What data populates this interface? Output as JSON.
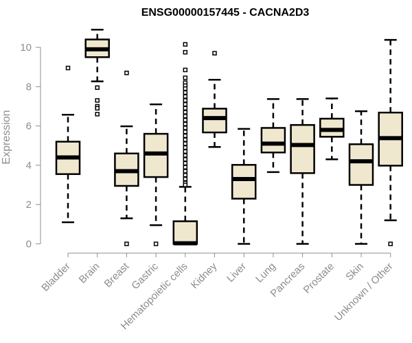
{
  "chart_data": {
    "type": "boxplot",
    "title": "ENSG00000157445 - CACNA2D3",
    "xlabel": "",
    "ylabel": "Expression",
    "ylim": [
      0,
      10.9
    ],
    "yticks": [
      0,
      2,
      4,
      6,
      8,
      10
    ],
    "grid": false,
    "box_fill": "#efe8cf",
    "box_stroke": "#000000",
    "axis_color": "#8c8c8c",
    "categories": [
      "Bladder",
      "Brain",
      "Breast",
      "Gastric",
      "Hematopoietic cells",
      "Kidney",
      "Liver",
      "Lung",
      "Pancreas",
      "Prostate",
      "Skin",
      "Unknown / Other"
    ],
    "series": [
      {
        "name": "Bladder",
        "whisker_low": 1.1,
        "q1": 3.55,
        "median": 4.4,
        "q3": 5.2,
        "whisker_high": 6.57,
        "outliers": [
          8.95
        ]
      },
      {
        "name": "Brain",
        "whisker_low": 8.27,
        "q1": 9.5,
        "median": 9.9,
        "q3": 10.4,
        "whisker_high": 10.9,
        "outliers": [
          7.95,
          7.3,
          7.0,
          6.9,
          6.6
        ]
      },
      {
        "name": "Breast",
        "whisker_low": 1.3,
        "q1": 2.95,
        "median": 3.7,
        "q3": 4.6,
        "whisker_high": 5.98,
        "outliers": [
          8.7,
          0.0
        ]
      },
      {
        "name": "Gastric",
        "whisker_low": 0.95,
        "q1": 3.4,
        "median": 4.6,
        "q3": 5.6,
        "whisker_high": 7.1,
        "outliers": [
          0.0
        ]
      },
      {
        "name": "Hematopoietic cells",
        "whisker_low": 0.0,
        "q1": 0.0,
        "median": 0.03,
        "q3": 1.15,
        "whisker_high": 2.9,
        "outliers": [
          10.15,
          9.75,
          8.85,
          8.45,
          8.2,
          8.05,
          7.9,
          7.7,
          7.5,
          7.3,
          7.1,
          6.9,
          6.7,
          6.5,
          6.3,
          6.1,
          5.9,
          5.7,
          5.5,
          5.3,
          5.1,
          4.9,
          4.7,
          4.5,
          4.3,
          4.1,
          3.9,
          3.7,
          3.5,
          3.3,
          3.1,
          3.0
        ]
      },
      {
        "name": "Kidney",
        "whisker_low": 4.93,
        "q1": 5.67,
        "median": 6.4,
        "q3": 6.88,
        "whisker_high": 8.35,
        "outliers": [
          9.7
        ]
      },
      {
        "name": "Liver",
        "whisker_low": 0.0,
        "q1": 2.3,
        "median": 3.3,
        "q3": 4.02,
        "whisker_high": 5.85,
        "outliers": []
      },
      {
        "name": "Lung",
        "whisker_low": 3.65,
        "q1": 4.65,
        "median": 5.1,
        "q3": 5.9,
        "whisker_high": 7.37,
        "outliers": []
      },
      {
        "name": "Pancreas",
        "whisker_low": 0.0,
        "q1": 3.6,
        "median": 5.03,
        "q3": 6.05,
        "whisker_high": 7.37,
        "outliers": []
      },
      {
        "name": "Prostate",
        "whisker_low": 4.3,
        "q1": 5.45,
        "median": 5.8,
        "q3": 6.37,
        "whisker_high": 7.4,
        "outliers": []
      },
      {
        "name": "Skin",
        "whisker_low": 0.0,
        "q1": 3.0,
        "median": 4.2,
        "q3": 5.07,
        "whisker_high": 6.75,
        "outliers": []
      },
      {
        "name": "Unknown / Other",
        "whisker_low": 1.2,
        "q1": 3.98,
        "median": 5.38,
        "q3": 6.68,
        "whisker_high": 10.38,
        "outliers": [
          0.0
        ]
      }
    ]
  }
}
